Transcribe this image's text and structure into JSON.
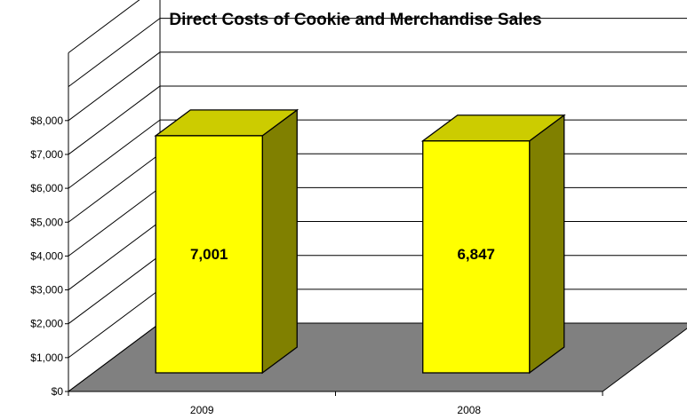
{
  "chart_data": {
    "type": "bar",
    "title": "Direct Costs of Cookie and Merchandise Sales",
    "categories": [
      "2009",
      "2008"
    ],
    "values": [
      7001,
      6847
    ],
    "data_labels": [
      "7,001",
      "6,847"
    ],
    "y_ticks": [
      "$0",
      "$1,000",
      "$2,000",
      "$3,000",
      "$4,000",
      "$5,000",
      "$6,000",
      "$7,000",
      "$8,000"
    ],
    "ylim": [
      0,
      10000
    ],
    "xlabel": "",
    "ylabel": "",
    "grid": true,
    "legend": "none",
    "three_d": true,
    "colors": {
      "bar_front": "#ffff00",
      "bar_top": "#cccc00",
      "bar_side": "#808000",
      "floor": "#808080",
      "outline": "#000000"
    }
  }
}
